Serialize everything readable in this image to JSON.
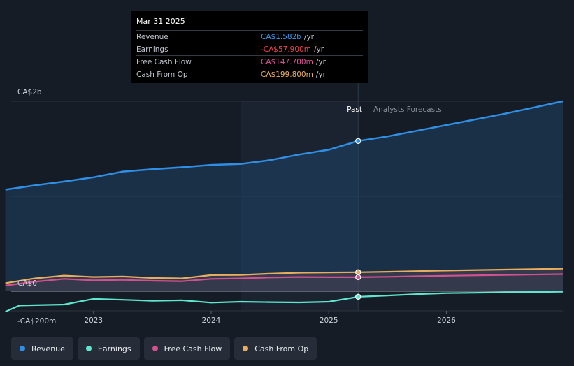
{
  "tooltip": {
    "date": "Mar 31 2025",
    "rows": [
      {
        "label": "Revenue",
        "value": "CA$1.582b",
        "unit": "/yr",
        "color": "#3b9cf0"
      },
      {
        "label": "Earnings",
        "value": "-CA$57.900m",
        "unit": "/yr",
        "color": "#f0454f"
      },
      {
        "label": "Free Cash Flow",
        "value": "CA$147.700m",
        "unit": "/yr",
        "color": "#e0569a"
      },
      {
        "label": "Cash From Op",
        "value": "CA$199.800m",
        "unit": "/yr",
        "color": "#eeb05e"
      }
    ]
  },
  "labels": {
    "past": "Past",
    "forecast": "Analysts Forecasts"
  },
  "legend": [
    {
      "label": "Revenue",
      "color": "#2f8fe6"
    },
    {
      "label": "Earnings",
      "color": "#5ee6cf"
    },
    {
      "label": "Free Cash Flow",
      "color": "#d1528f"
    },
    {
      "label": "Cash From Op",
      "color": "#e9ae5d"
    }
  ],
  "chart_data": {
    "type": "line",
    "title": "",
    "xlabel": "",
    "ylabel": "",
    "x_ticks": [
      "2023",
      "2024",
      "2025",
      "2026"
    ],
    "y_ticks": [
      {
        "value": 2000,
        "label": "CA$2b"
      },
      {
        "value": 0,
        "label": "CA$0"
      },
      {
        "value": -200,
        "label": "-CA$200m"
      }
    ],
    "ylim": [
      -250,
      2000
    ],
    "xlim": [
      2022.3,
      2026.99
    ],
    "past_end": 2025.25,
    "shaded_start": 2024.25,
    "highlight_x": 2025.25,
    "series": [
      {
        "name": "Revenue",
        "color": "#2f8fe6",
        "points": [
          [
            2022.25,
            1070
          ],
          [
            2022.5,
            1115
          ],
          [
            2022.75,
            1155
          ],
          [
            2023.0,
            1200
          ],
          [
            2023.25,
            1260
          ],
          [
            2023.5,
            1285
          ],
          [
            2023.75,
            1305
          ],
          [
            2024.0,
            1330
          ],
          [
            2024.25,
            1340
          ],
          [
            2024.5,
            1380
          ],
          [
            2024.75,
            1440
          ],
          [
            2025.0,
            1490
          ],
          [
            2025.25,
            1582
          ],
          [
            2025.5,
            1630
          ],
          [
            2025.75,
            1690
          ],
          [
            2026.0,
            1750
          ],
          [
            2026.5,
            1870
          ],
          [
            2026.99,
            2000
          ]
        ]
      },
      {
        "name": "Earnings",
        "color": "#5ee6cf",
        "points": [
          [
            2022.25,
            -215
          ],
          [
            2022.37,
            -150
          ],
          [
            2022.75,
            -140
          ],
          [
            2023.0,
            -80
          ],
          [
            2023.25,
            -90
          ],
          [
            2023.5,
            -100
          ],
          [
            2023.75,
            -95
          ],
          [
            2024.0,
            -120
          ],
          [
            2024.25,
            -110
          ],
          [
            2024.5,
            -115
          ],
          [
            2024.75,
            -118
          ],
          [
            2025.0,
            -110
          ],
          [
            2025.25,
            -57.9
          ],
          [
            2025.5,
            -45
          ],
          [
            2025.75,
            -30
          ],
          [
            2026.0,
            -20
          ],
          [
            2026.5,
            -12
          ],
          [
            2026.99,
            -5
          ]
        ]
      },
      {
        "name": "Free Cash Flow",
        "color": "#d1528f",
        "points": [
          [
            2022.25,
            60
          ],
          [
            2022.5,
            100
          ],
          [
            2022.75,
            130
          ],
          [
            2023.0,
            115
          ],
          [
            2023.25,
            120
          ],
          [
            2023.5,
            110
          ],
          [
            2023.75,
            105
          ],
          [
            2024.0,
            130
          ],
          [
            2024.25,
            135
          ],
          [
            2024.5,
            145
          ],
          [
            2024.75,
            150
          ],
          [
            2025.0,
            148
          ],
          [
            2025.25,
            147.7
          ],
          [
            2025.5,
            152
          ],
          [
            2025.75,
            158
          ],
          [
            2026.0,
            163
          ],
          [
            2026.5,
            172
          ],
          [
            2026.99,
            180
          ]
        ]
      },
      {
        "name": "Cash From Op",
        "color": "#e9ae5d",
        "points": [
          [
            2022.25,
            85
          ],
          [
            2022.5,
            135
          ],
          [
            2022.75,
            165
          ],
          [
            2023.0,
            150
          ],
          [
            2023.25,
            155
          ],
          [
            2023.5,
            140
          ],
          [
            2023.75,
            135
          ],
          [
            2024.0,
            170
          ],
          [
            2024.25,
            172
          ],
          [
            2024.5,
            185
          ],
          [
            2024.75,
            195
          ],
          [
            2025.0,
            198
          ],
          [
            2025.25,
            199.8
          ],
          [
            2025.5,
            205
          ],
          [
            2025.75,
            212
          ],
          [
            2026.0,
            218
          ],
          [
            2026.5,
            228
          ],
          [
            2026.99,
            238
          ]
        ]
      }
    ]
  }
}
